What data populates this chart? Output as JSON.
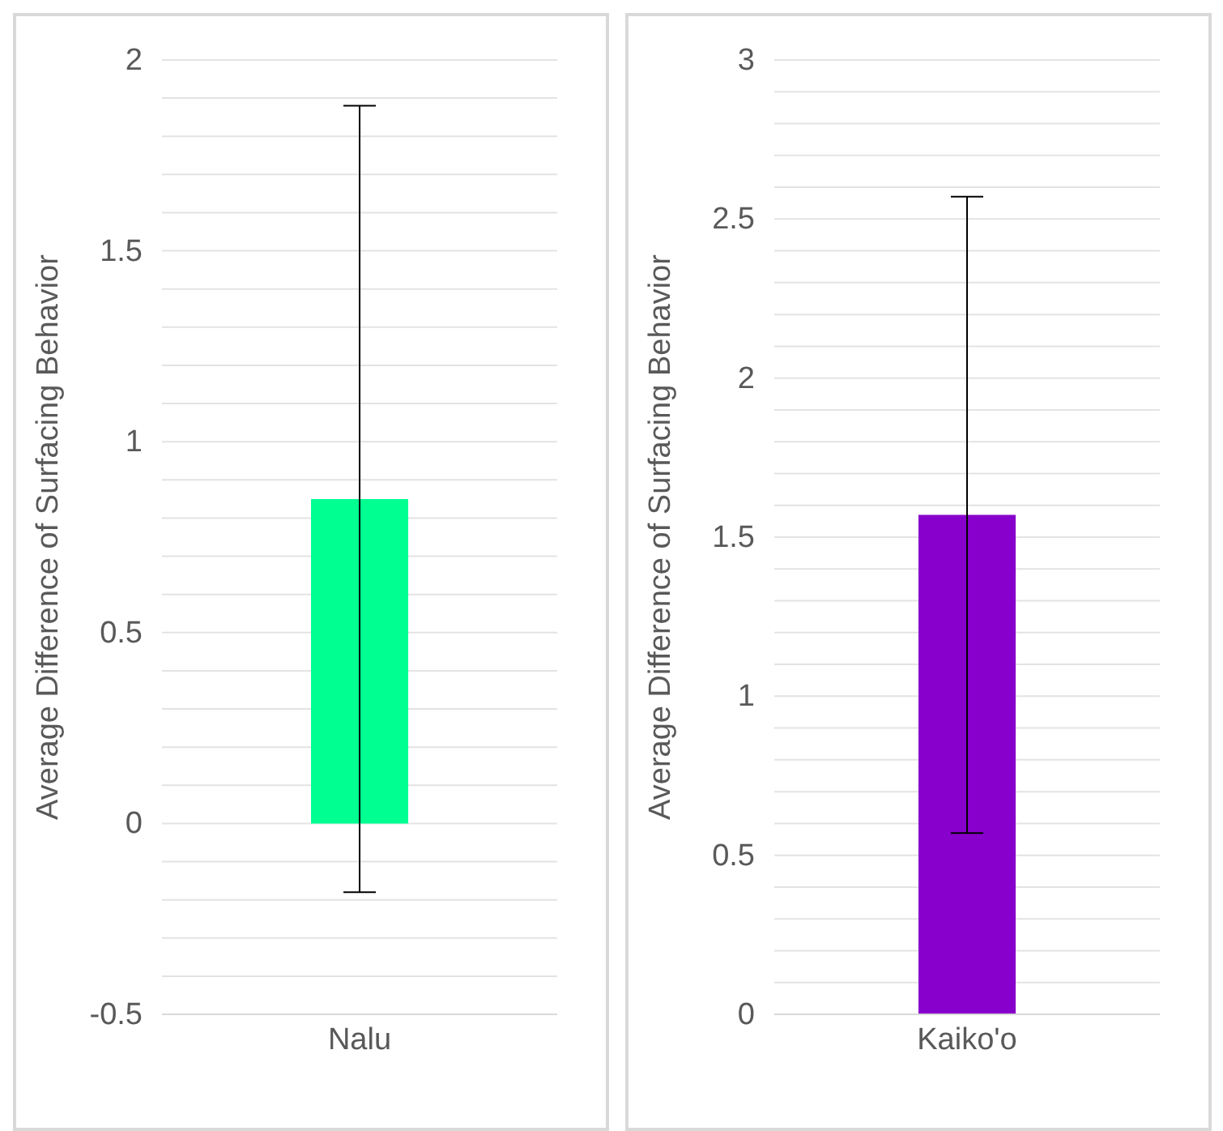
{
  "chart_data": [
    {
      "type": "bar",
      "ylabel": "Average Difference of Surfacing Behavior",
      "categories": [
        "Nalu"
      ],
      "series": [
        {
          "color": "#00ff91",
          "values": [
            0.85
          ],
          "errors": [
            1.03
          ]
        }
      ],
      "ylim": [
        -0.5,
        2
      ],
      "yticks": [
        -0.5,
        {
          "value": -0.4,
          "label": null
        },
        {
          "value": -0.3,
          "label": null
        },
        {
          "value": -0.2,
          "label": null
        },
        {
          "value": -0.1,
          "label": null
        },
        0,
        {
          "value": 0.1,
          "label": null
        },
        {
          "value": 0.2,
          "label": null
        },
        {
          "value": 0.3,
          "label": null
        },
        {
          "value": 0.4,
          "label": null
        },
        0.5,
        {
          "value": 0.6,
          "label": null
        },
        {
          "value": 0.7,
          "label": null
        },
        {
          "value": 0.8,
          "label": null
        },
        {
          "value": 0.9,
          "label": null
        },
        1,
        {
          "value": 1.1,
          "label": null
        },
        {
          "value": 1.2,
          "label": null
        },
        {
          "value": 1.3,
          "label": null
        },
        {
          "value": 1.4,
          "label": null
        },
        1.5,
        {
          "value": 1.6,
          "label": null
        },
        {
          "value": 1.7,
          "label": null
        },
        {
          "value": 1.8,
          "label": null
        },
        {
          "value": 1.9,
          "label": null
        },
        2
      ],
      "grid": "y",
      "legend": false
    },
    {
      "type": "bar",
      "ylabel": "Average Difference of Surfacing Behavior",
      "categories": [
        "Kaiko'o"
      ],
      "series": [
        {
          "color": "#8800cc",
          "values": [
            1.57
          ],
          "errors": [
            1.0
          ]
        }
      ],
      "ylim": [
        0,
        3
      ],
      "yticks": [
        0,
        {
          "value": 0.1,
          "label": null
        },
        {
          "value": 0.2,
          "label": null
        },
        {
          "value": 0.3,
          "label": null
        },
        {
          "value": 0.4,
          "label": null
        },
        0.5,
        {
          "value": 0.6,
          "label": null
        },
        {
          "value": 0.7,
          "label": null
        },
        {
          "value": 0.8,
          "label": null
        },
        {
          "value": 0.9,
          "label": null
        },
        1,
        {
          "value": 1.1,
          "label": null
        },
        {
          "value": 1.2,
          "label": null
        },
        {
          "value": 1.3,
          "label": null
        },
        {
          "value": 1.4,
          "label": null
        },
        1.5,
        {
          "value": 1.6,
          "label": null
        },
        {
          "value": 1.7,
          "label": null
        },
        {
          "value": 1.8,
          "label": null
        },
        {
          "value": 1.9,
          "label": null
        },
        2,
        {
          "value": 2.1,
          "label": null
        },
        {
          "value": 2.2,
          "label": null
        },
        {
          "value": 2.3,
          "label": null
        },
        {
          "value": 2.4,
          "label": null
        },
        2.5,
        {
          "value": 2.6,
          "label": null
        },
        {
          "value": 2.7,
          "label": null
        },
        {
          "value": 2.8,
          "label": null
        },
        {
          "value": 2.9,
          "label": null
        },
        3
      ],
      "grid": "y",
      "legend": false
    }
  ]
}
